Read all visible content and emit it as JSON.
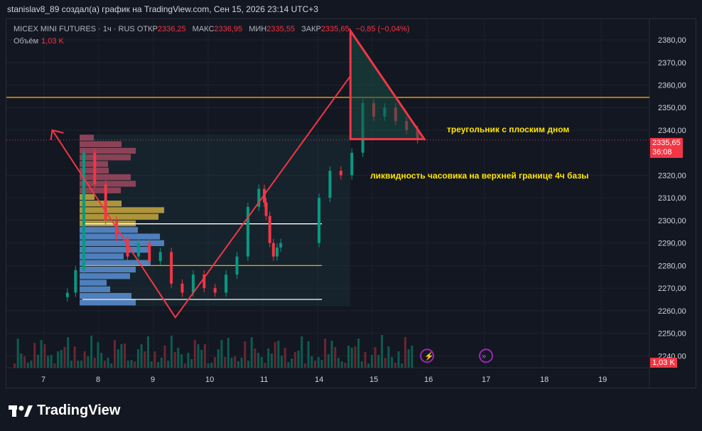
{
  "caption": "stanislav8_89 создал(а) график на TradingView.com, Сен 15, 2026 23:14 UTC+3",
  "legend": {
    "instrument": "MICEX MINI FUTURES · 1ч · RUS",
    "open_label": "ОТКР",
    "open": "2336,25",
    "high_label": "МАКС",
    "high": "2336,95",
    "low_label": "МИН",
    "low": "2335,55",
    "close_label": "ЗАКР",
    "close": "2335,65",
    "change": "−0,85 (−0,04%)",
    "volume_label": "Объём",
    "volume": "1,03 K"
  },
  "price_badge": {
    "price": "2335,65",
    "timer": "36:08"
  },
  "volume_badge": "1,03 K",
  "annotations": {
    "triangle": "треугольник с плоским дном",
    "liquidity": "ликвидность часовика на верхней границе 4ч базы"
  },
  "footer": {
    "brand": "TradingView"
  },
  "colors": {
    "bg": "#131722",
    "up": "#089981",
    "down": "#f23645",
    "annot": "#ffe500",
    "orange": "#f7a600"
  },
  "chart_data": {
    "type": "line",
    "y_ticks": [
      "2380,00",
      "2370,00",
      "2360,00",
      "2350,00",
      "2340,00",
      "2320,00",
      "2310,00",
      "2300,00",
      "2290,00",
      "2280,00",
      "2270,00",
      "2260,00",
      "2250,00",
      "2240,00"
    ],
    "x_ticks": [
      "7",
      "8",
      "9",
      "10",
      "11",
      "14",
      "15",
      "16",
      "17",
      "18",
      "19"
    ],
    "ylim": [
      2236,
      2386
    ],
    "horizontal_levels": [
      {
        "price": 2354.5,
        "color": "#f7a600"
      },
      {
        "price": 2298.5,
        "color": "#ffffff"
      },
      {
        "price": 2280.0,
        "color": "#f7a600"
      },
      {
        "price": 2265.0,
        "color": "#ffffff"
      }
    ],
    "zigzag_path": [
      {
        "x": 7.15,
        "y": 2340
      },
      {
        "x": 9.4,
        "y": 2257
      },
      {
        "x": 14.6,
        "y": 2364
      }
    ],
    "triangle": [
      {
        "x": 14.6,
        "y": 2384
      },
      {
        "x": 15.95,
        "y": 2336
      },
      {
        "x": 14.6,
        "y": 2336
      }
    ],
    "price_series": [
      {
        "x": 7.4,
        "y": 2268
      },
      {
        "x": 7.55,
        "y": 2278
      },
      {
        "x": 7.7,
        "y": 2330
      },
      {
        "x": 7.9,
        "y": 2316
      },
      {
        "x": 8.1,
        "y": 2300
      },
      {
        "x": 8.3,
        "y": 2292
      },
      {
        "x": 8.5,
        "y": 2284
      },
      {
        "x": 8.7,
        "y": 2290
      },
      {
        "x": 8.9,
        "y": 2282
      },
      {
        "x": 9.1,
        "y": 2286
      },
      {
        "x": 9.3,
        "y": 2272
      },
      {
        "x": 9.5,
        "y": 2268
      },
      {
        "x": 9.7,
        "y": 2276
      },
      {
        "x": 9.9,
        "y": 2270
      },
      {
        "x": 10.1,
        "y": 2268
      },
      {
        "x": 10.3,
        "y": 2276
      },
      {
        "x": 10.5,
        "y": 2284
      },
      {
        "x": 10.7,
        "y": 2306
      },
      {
        "x": 10.9,
        "y": 2314
      },
      {
        "x": 11.0,
        "y": 2308
      },
      {
        "x": 11.1,
        "y": 2302
      },
      {
        "x": 11.3,
        "y": 2290
      },
      {
        "x": 11.5,
        "y": 2284
      },
      {
        "x": 11.7,
        "y": 2288
      },
      {
        "x": 11.9,
        "y": 2290
      },
      {
        "x": 14.0,
        "y": 2310
      },
      {
        "x": 14.2,
        "y": 2322
      },
      {
        "x": 14.4,
        "y": 2320
      },
      {
        "x": 14.6,
        "y": 2330
      },
      {
        "x": 14.8,
        "y": 2352
      },
      {
        "x": 15.0,
        "y": 2346
      },
      {
        "x": 15.2,
        "y": 2350
      },
      {
        "x": 15.4,
        "y": 2344
      },
      {
        "x": 15.6,
        "y": 2340
      },
      {
        "x": 15.8,
        "y": 2336
      }
    ],
    "current_price": 2335.65,
    "volume_profile_range": [
      2262,
      2338
    ]
  }
}
